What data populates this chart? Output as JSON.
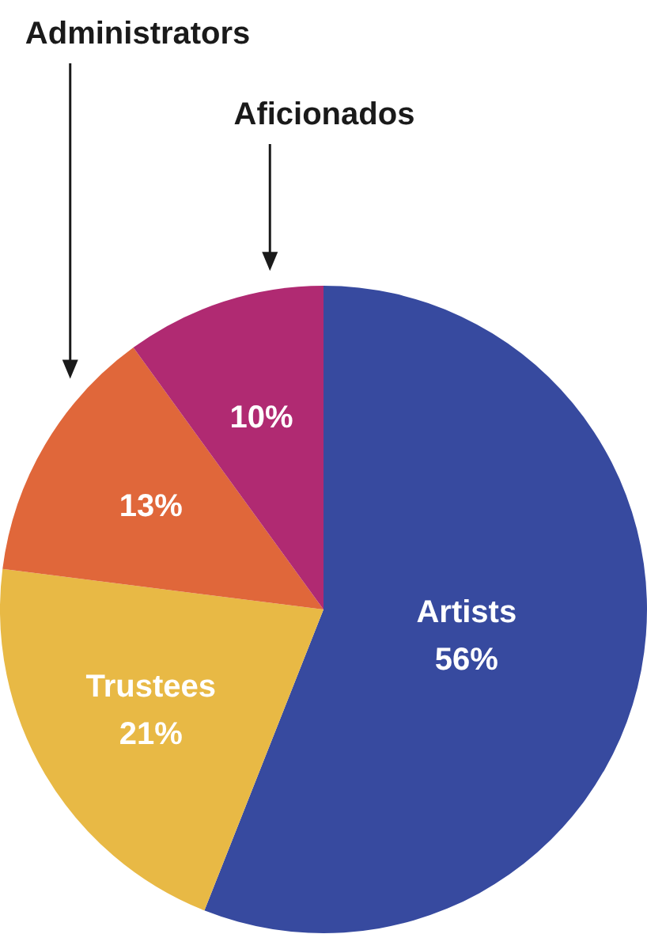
{
  "chart_data": {
    "type": "pie",
    "categories": [
      "Artists",
      "Trustees",
      "Administrators",
      "Aficionados"
    ],
    "values": [
      56,
      21,
      13,
      10
    ],
    "colors": [
      "#374a9f",
      "#e8b945",
      "#e0673a",
      "#b02a72"
    ],
    "value_labels": [
      "56%",
      "21%",
      "13%",
      "10%"
    ]
  }
}
